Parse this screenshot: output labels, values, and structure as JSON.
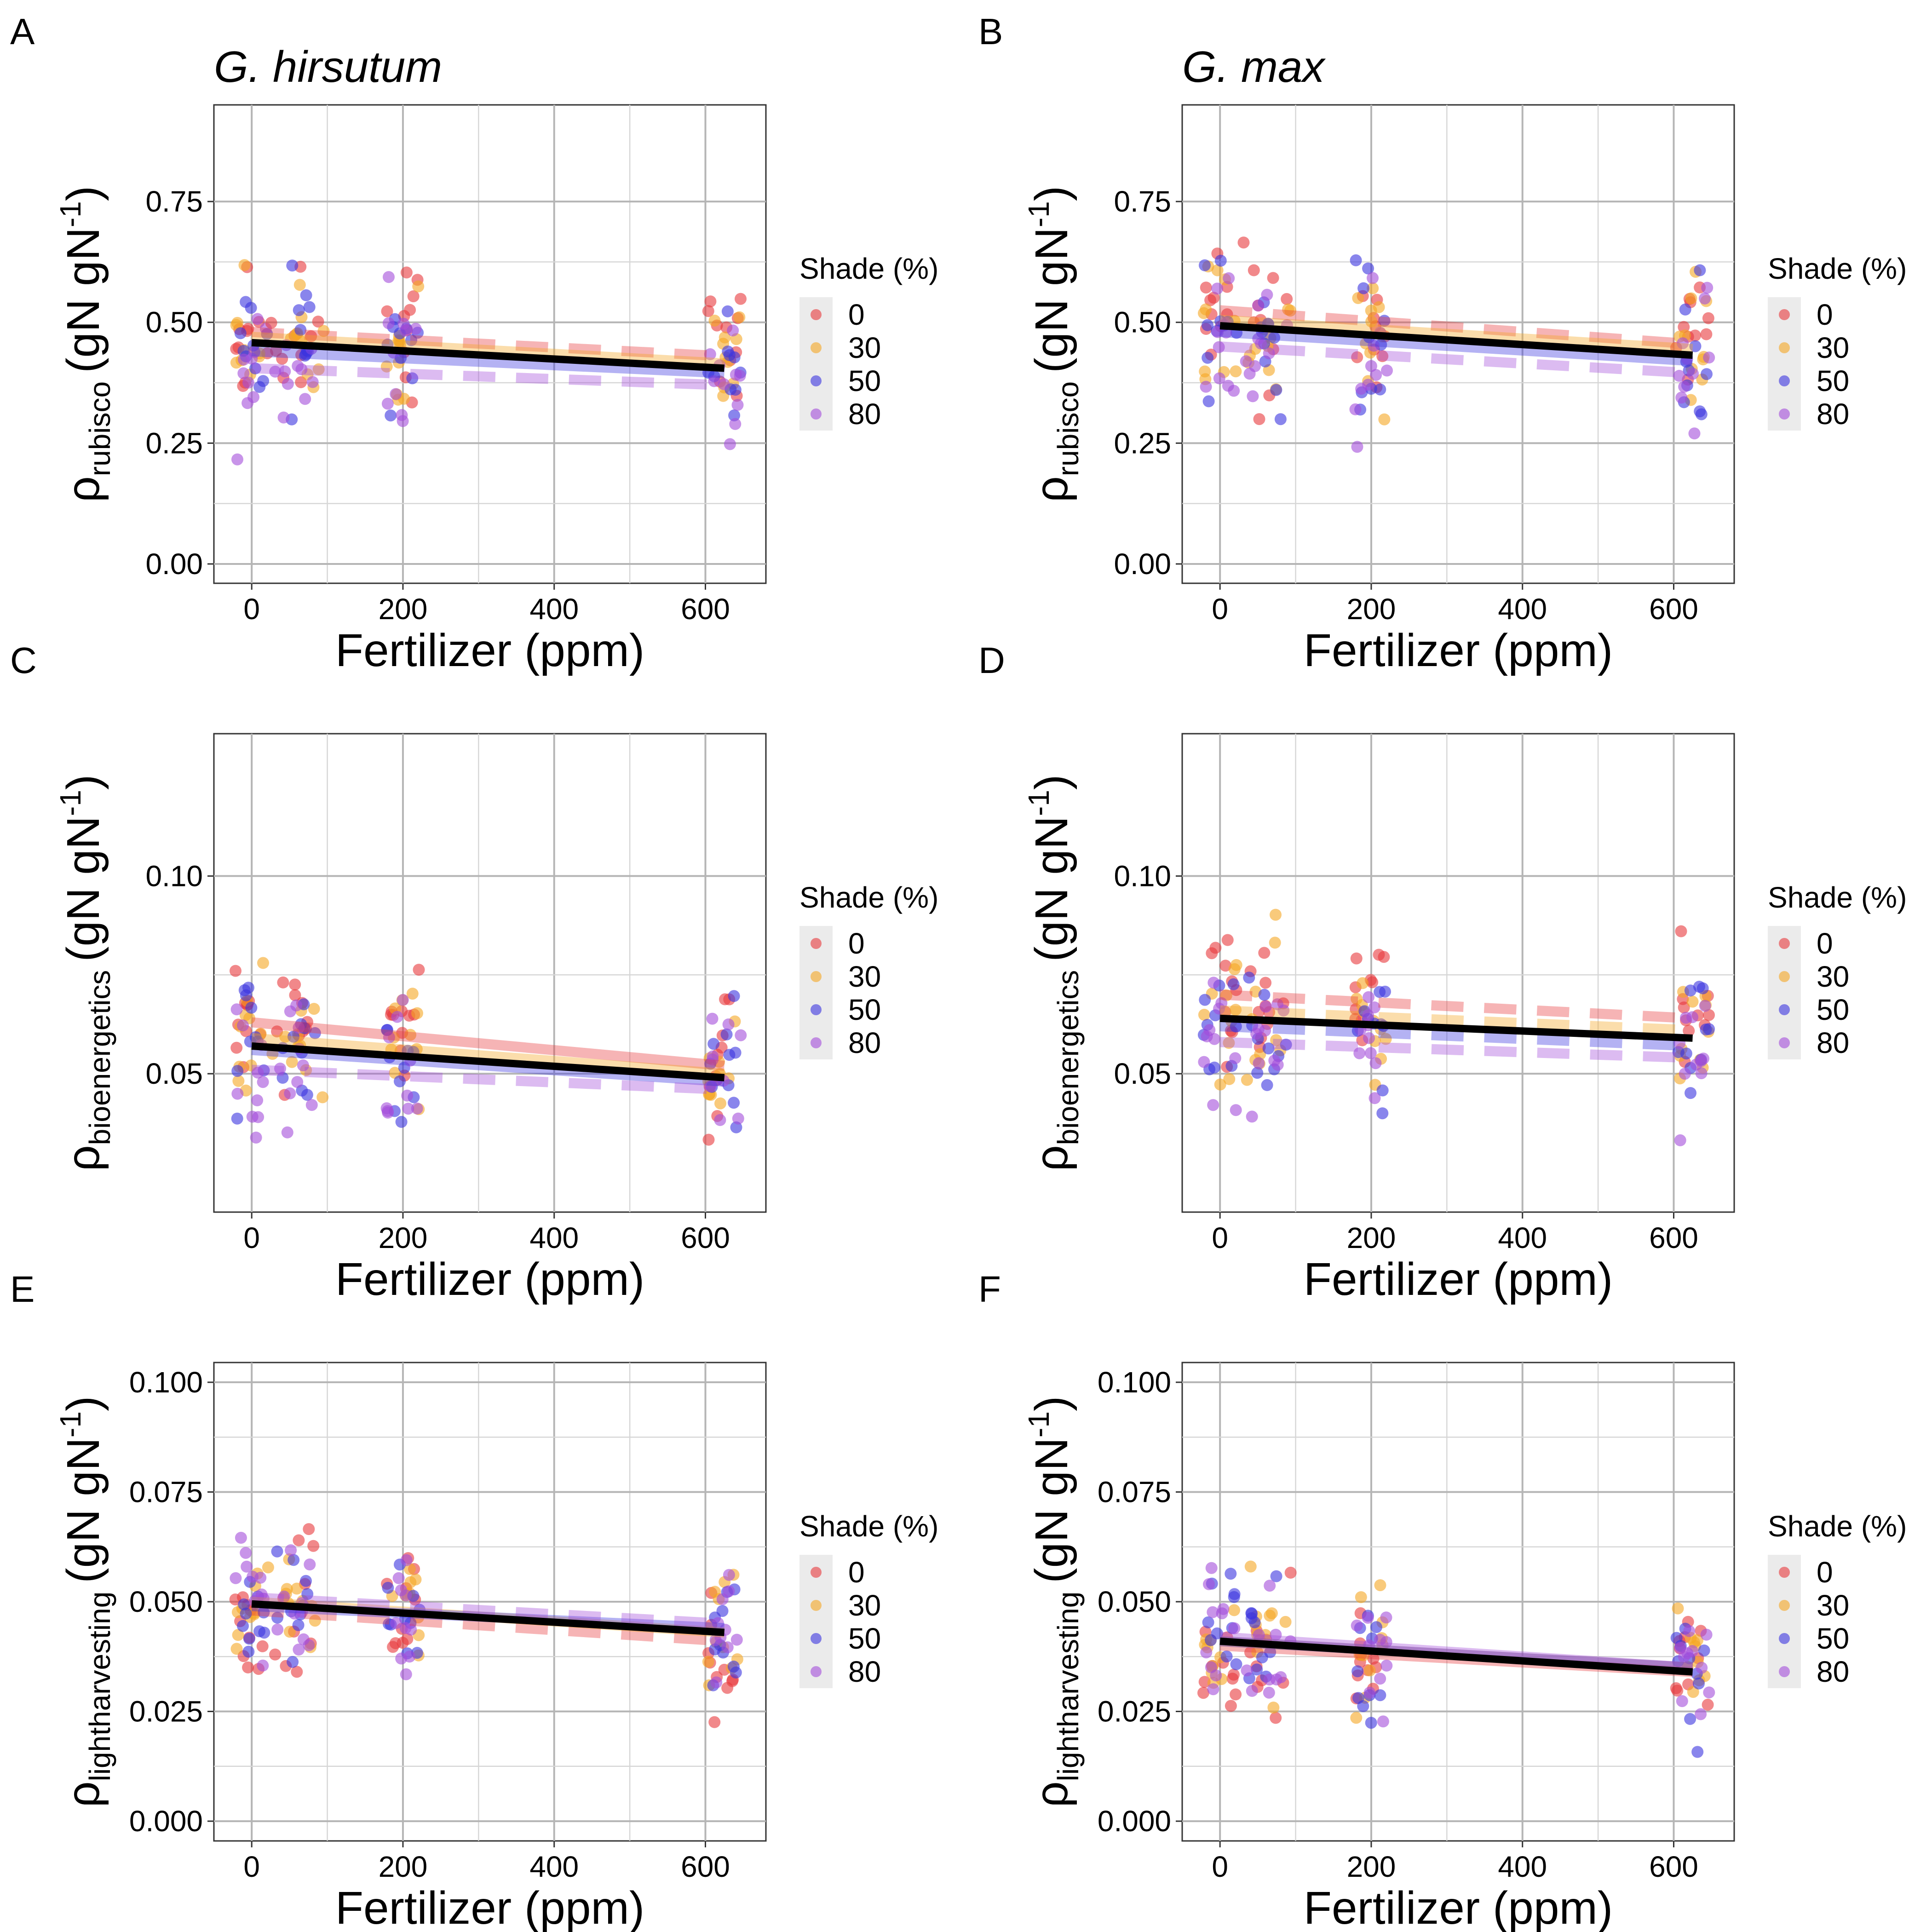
{
  "legend": {
    "title": "Shade (%)",
    "levels": [
      "0",
      "30",
      "50",
      "80"
    ],
    "colors": [
      "#e8393c",
      "#f5a623",
      "#3b34e0",
      "#a44ddb"
    ]
  },
  "regression_color": "#000000",
  "chart_data": [
    {
      "panel": "A",
      "species": "G. hirsutum",
      "type": "scatter",
      "ylabel_sym": "ρ",
      "ylabel_sub": "rubisco",
      "ylabel_unit": "(gN gN",
      "ylabel_sup": "-1",
      "ylabel_close": ")",
      "xlabel": "Fertilizer (ppm)",
      "xlim": [
        -50,
        680
      ],
      "ylim": [
        -0.04,
        0.95
      ],
      "xticks": [
        0,
        200,
        400,
        600
      ],
      "xtick_labels": [
        "0",
        "200",
        "400",
        "600"
      ],
      "yticks": [
        0,
        0.25,
        0.5,
        0.75
      ],
      "ytick_labels": [
        "0.00",
        "0.25",
        "0.50",
        "0.75"
      ],
      "grid": true,
      "seed": 11,
      "jitter": 22,
      "sd": 0.1,
      "minv": 0.12,
      "maxv": 0.83,
      "fits": [
        [
          0.48,
          0.43,
          "dashed"
        ],
        [
          0.47,
          0.415,
          "solid"
        ],
        [
          0.44,
          0.395,
          "solid"
        ],
        [
          0.405,
          0.37,
          "dashed"
        ]
      ],
      "overall": [
        0.458,
        0.405
      ]
    },
    {
      "panel": "B",
      "species": "G. max",
      "type": "scatter",
      "ylabel_sym": "ρ",
      "ylabel_sub": "rubisco",
      "ylabel_unit": "(gN gN",
      "ylabel_sup": "-1",
      "ylabel_close": ")",
      "xlabel": "Fertilizer (ppm)",
      "xlim": [
        -50,
        680
      ],
      "ylim": [
        -0.04,
        0.95
      ],
      "xticks": [
        0,
        200,
        400,
        600
      ],
      "xtick_labels": [
        "0",
        "200",
        "400",
        "600"
      ],
      "yticks": [
        0,
        0.25,
        0.5,
        0.75
      ],
      "ytick_labels": [
        "0.00",
        "0.25",
        "0.50",
        "0.75"
      ],
      "grid": true,
      "seed": 23,
      "jitter": 22,
      "sd": 0.12,
      "minv": 0.14,
      "maxv": 0.88,
      "fits": [
        [
          0.525,
          0.455,
          "dashed"
        ],
        [
          0.505,
          0.445,
          "solid"
        ],
        [
          0.48,
          0.42,
          "solid"
        ],
        [
          0.45,
          0.395,
          "dashed"
        ]
      ],
      "overall": [
        0.493,
        0.432
      ]
    },
    {
      "panel": "C",
      "species": "",
      "type": "scatter",
      "ylabel_sym": "ρ",
      "ylabel_sub": "bioenergetics",
      "ylabel_unit": "(gN gN",
      "ylabel_sup": "-1",
      "ylabel_close": ")",
      "xlabel": "Fertilizer (ppm)",
      "xlim": [
        -50,
        680
      ],
      "ylim": [
        0.015,
        0.136
      ],
      "xticks": [
        0,
        200,
        400,
        600
      ],
      "xtick_labels": [
        "0",
        "200",
        "400",
        "600"
      ],
      "yticks": [
        0.05,
        0.1
      ],
      "ytick_labels": [
        "0.05",
        "0.10"
      ],
      "grid": true,
      "seed": 37,
      "jitter": 22,
      "sd": 0.012,
      "minv": 0.024,
      "maxv": 0.1,
      "fits": [
        [
          0.063,
          0.052,
          "solid"
        ],
        [
          0.059,
          0.05,
          "solid"
        ],
        [
          0.056,
          0.048,
          "solid"
        ],
        [
          0.051,
          0.046,
          "dashed"
        ]
      ],
      "overall": [
        0.057,
        0.049
      ]
    },
    {
      "panel": "D",
      "species": "",
      "type": "scatter",
      "ylabel_sym": "ρ",
      "ylabel_sub": "bioenergetics",
      "ylabel_unit": "(gN gN",
      "ylabel_sup": "-1",
      "ylabel_close": ")",
      "xlabel": "Fertilizer (ppm)",
      "xlim": [
        -50,
        680
      ],
      "ylim": [
        0.015,
        0.136
      ],
      "xticks": [
        0,
        200,
        400,
        600
      ],
      "xtick_labels": [
        "0",
        "200",
        "400",
        "600"
      ],
      "yticks": [
        0.05,
        0.1
      ],
      "ytick_labels": [
        "0.05",
        "0.10"
      ],
      "grid": true,
      "seed": 41,
      "jitter": 22,
      "sd": 0.013,
      "minv": 0.028,
      "maxv": 0.118,
      "fits": [
        [
          0.07,
          0.064,
          "dashed"
        ],
        [
          0.066,
          0.061,
          "dashed"
        ],
        [
          0.062,
          0.057,
          "dashed"
        ],
        [
          0.058,
          0.054,
          "dashed"
        ]
      ],
      "overall": [
        0.064,
        0.059
      ]
    },
    {
      "panel": "E",
      "species": "",
      "type": "scatter",
      "ylabel_sym": "ρ",
      "ylabel_sub": "lightharvesting",
      "ylabel_unit": "(gN gN",
      "ylabel_sup": "-1",
      "ylabel_close": ")",
      "xlabel": "Fertilizer (ppm)",
      "xlim": [
        -50,
        680
      ],
      "ylim": [
        -0.0045,
        0.1045
      ],
      "xticks": [
        0,
        200,
        400,
        600
      ],
      "xtick_labels": [
        "0",
        "200",
        "400",
        "600"
      ],
      "yticks": [
        0,
        0.025,
        0.05,
        0.075,
        0.1
      ],
      "ytick_labels": [
        "0.000",
        "0.025",
        "0.050",
        "0.075",
        "0.100"
      ],
      "grid": true,
      "seed": 53,
      "jitter": 22,
      "sd": 0.011,
      "minv": 0.021,
      "maxv": 0.09,
      "fits": [
        [
          0.048,
          0.041,
          "dashed"
        ],
        [
          0.05,
          0.043,
          "solid"
        ],
        [
          0.049,
          0.044,
          "solid"
        ],
        [
          0.051,
          0.045,
          "dashed"
        ]
      ],
      "overall": [
        0.0495,
        0.043
      ]
    },
    {
      "panel": "F",
      "species": "",
      "type": "scatter",
      "ylabel_sym": "ρ",
      "ylabel_sub": "lightharvesting",
      "ylabel_unit": "(gN gN",
      "ylabel_sup": "-1",
      "ylabel_close": ")",
      "xlabel": "Fertilizer (ppm)",
      "xlim": [
        -50,
        680
      ],
      "ylim": [
        -0.0045,
        0.1045
      ],
      "xticks": [
        0,
        200,
        400,
        600
      ],
      "xtick_labels": [
        "0",
        "200",
        "400",
        "600"
      ],
      "yticks": [
        0,
        0.025,
        0.05,
        0.075,
        0.1
      ],
      "ytick_labels": [
        "0.000",
        "0.025",
        "0.050",
        "0.075",
        "0.100"
      ],
      "grid": true,
      "seed": 67,
      "jitter": 22,
      "sd": 0.011,
      "minv": 0.003,
      "maxv": 0.078,
      "fits": [
        [
          0.04,
          0.034,
          "solid"
        ],
        [
          0.041,
          0.035,
          "solid"
        ],
        [
          0.041,
          0.035,
          "solid"
        ],
        [
          0.042,
          0.035,
          "solid"
        ]
      ],
      "overall": [
        0.041,
        0.034
      ]
    }
  ]
}
